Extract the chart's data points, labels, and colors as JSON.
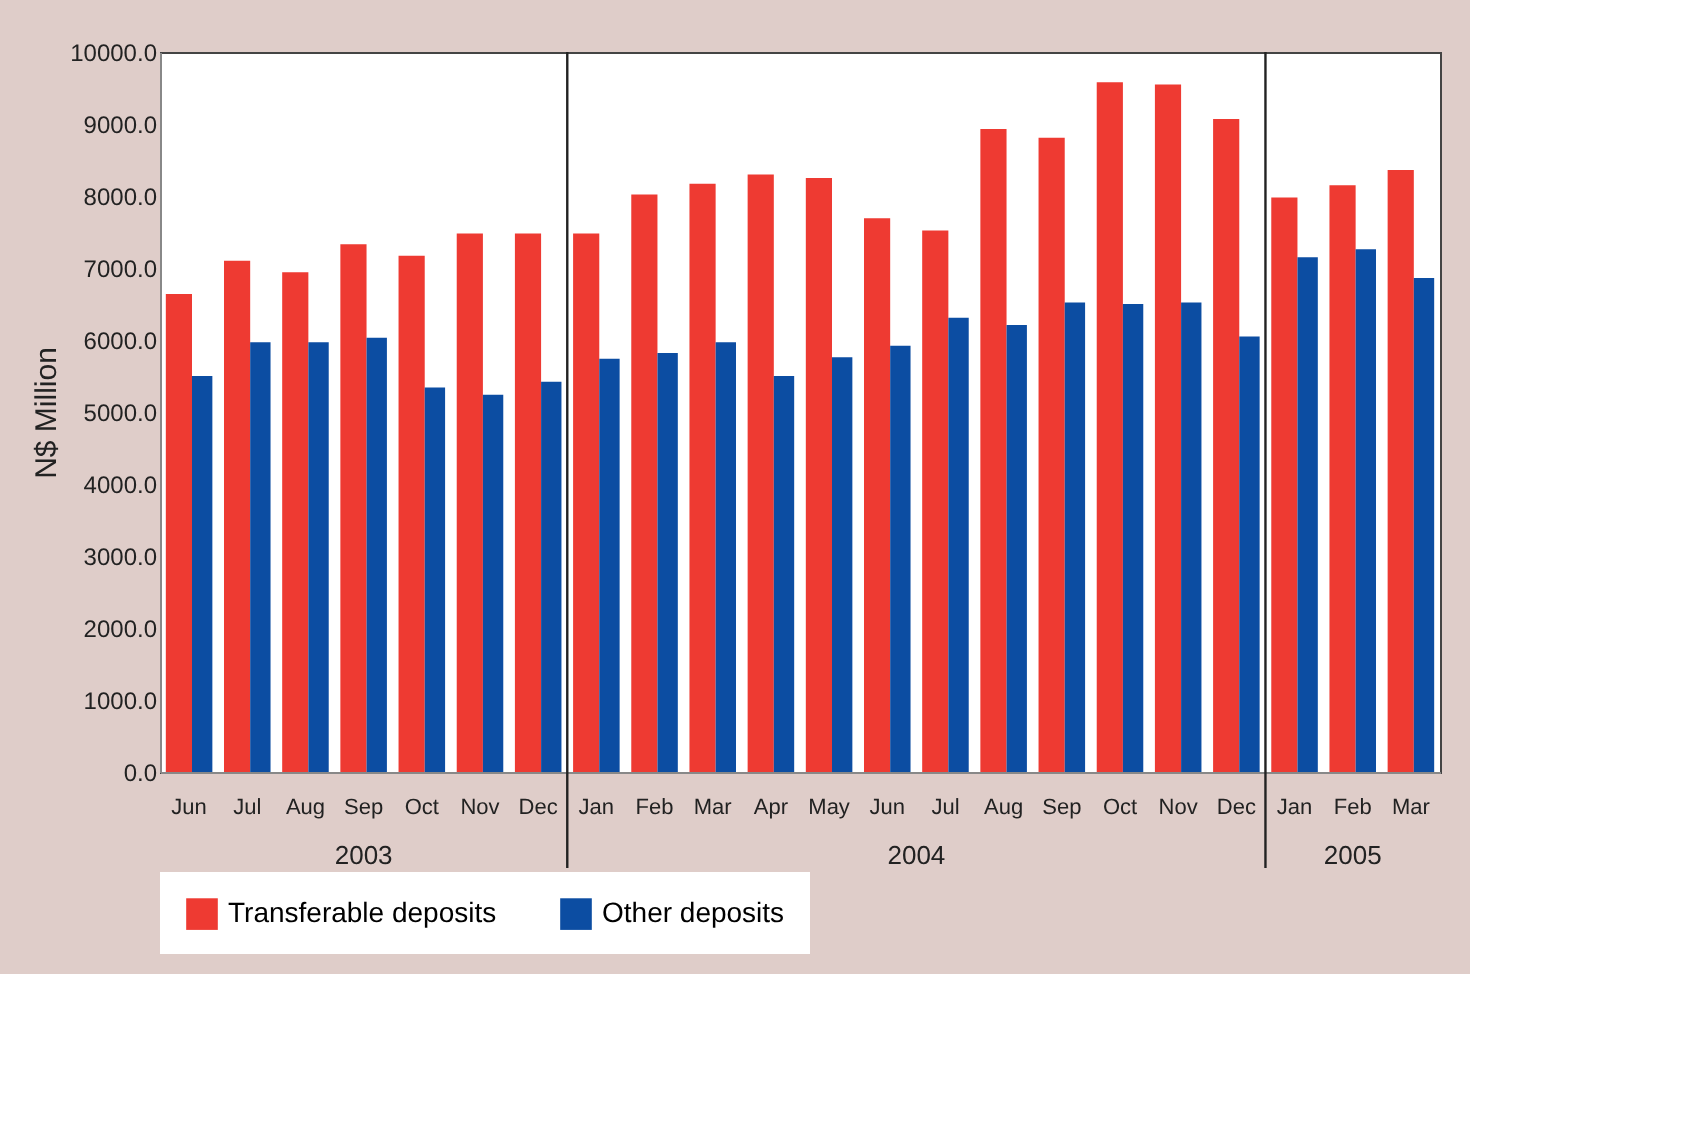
{
  "chart_data": {
    "type": "bar",
    "ylabel": "N$ Million",
    "categories": [
      "Jun",
      "Jul",
      "Aug",
      "Sep",
      "Oct",
      "Nov",
      "Dec",
      "Jan",
      "Feb",
      "Mar",
      "Apr",
      "May",
      "Jun",
      "Jul",
      "Aug",
      "Sep",
      "Oct",
      "Nov",
      "Dec",
      "Jan",
      "Feb",
      "Mar"
    ],
    "series": [
      {
        "name": "Transferable deposits",
        "color": "#ee3a32",
        "values": [
          6640,
          7100,
          6940,
          7330,
          7170,
          7480,
          7480,
          7480,
          8020,
          8170,
          8300,
          8250,
          7690,
          7520,
          8930,
          8810,
          9580,
          9550,
          9070,
          7980,
          8150,
          8360
        ]
      },
      {
        "name": "Other deposits",
        "color": "#0c4da2",
        "values": [
          5500,
          5970,
          5970,
          6030,
          5340,
          5240,
          5420,
          5740,
          5820,
          5970,
          5500,
          5760,
          5920,
          6310,
          6210,
          6520,
          6500,
          6520,
          6050,
          7150,
          7260,
          6860
        ]
      }
    ],
    "ylim": [
      0,
      10000
    ],
    "yticks": [
      {
        "value": 0,
        "label": "0.0"
      },
      {
        "value": 1000,
        "label": "1000.0"
      },
      {
        "value": 2000,
        "label": "2000.0"
      },
      {
        "value": 3000,
        "label": "3000.0"
      },
      {
        "value": 4000,
        "label": "4000.0"
      },
      {
        "value": 5000,
        "label": "5000.0"
      },
      {
        "value": 6000,
        "label": "6000.0"
      },
      {
        "value": 7000,
        "label": "7000.0"
      },
      {
        "value": 8000,
        "label": "8000.0"
      },
      {
        "value": 9000,
        "label": "9000.0"
      },
      {
        "value": 10000,
        "label": "10000.0"
      }
    ],
    "annotations": [
      "2003",
      "2004",
      "2005"
    ],
    "grid": false,
    "legend": "bottom"
  }
}
